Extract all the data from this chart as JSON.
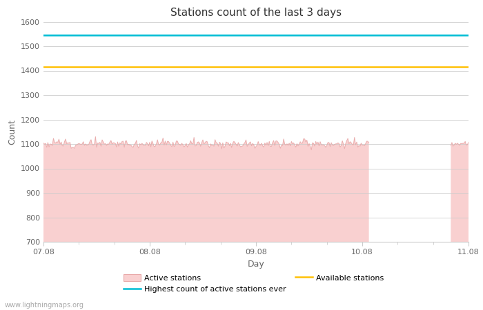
{
  "title": "Stations count of the last 3 days",
  "xlabel": "Day",
  "ylabel": "Count",
  "ylim": [
    700,
    1600
  ],
  "yticks": [
    700,
    800,
    900,
    1000,
    1100,
    1200,
    1300,
    1400,
    1500,
    1600
  ],
  "xlim_start": 0,
  "xlim_end": 96,
  "xtick_positions": [
    0,
    24,
    48,
    72,
    96
  ],
  "xtick_labels": [
    "07.08",
    "08.08",
    "09.08",
    "10.08",
    "11.08"
  ],
  "active_stations_base": 1100,
  "active_stations_noise_amplitude": 8,
  "available_stations_value": 1415,
  "highest_count_ever_value": 1545,
  "fill_color": "#f9d0d0",
  "fill_edge_color": "#e8a8a8",
  "available_color": "#ffc107",
  "highest_color": "#00bcd4",
  "drop_x": 73.5,
  "resume_x": 92,
  "resume_value": 1100,
  "title_fontsize": 11,
  "axis_label_fontsize": 9,
  "tick_fontsize": 8,
  "watermark": "www.lightningmaps.org",
  "background_color": "#ffffff",
  "grid_color": "#cccccc"
}
